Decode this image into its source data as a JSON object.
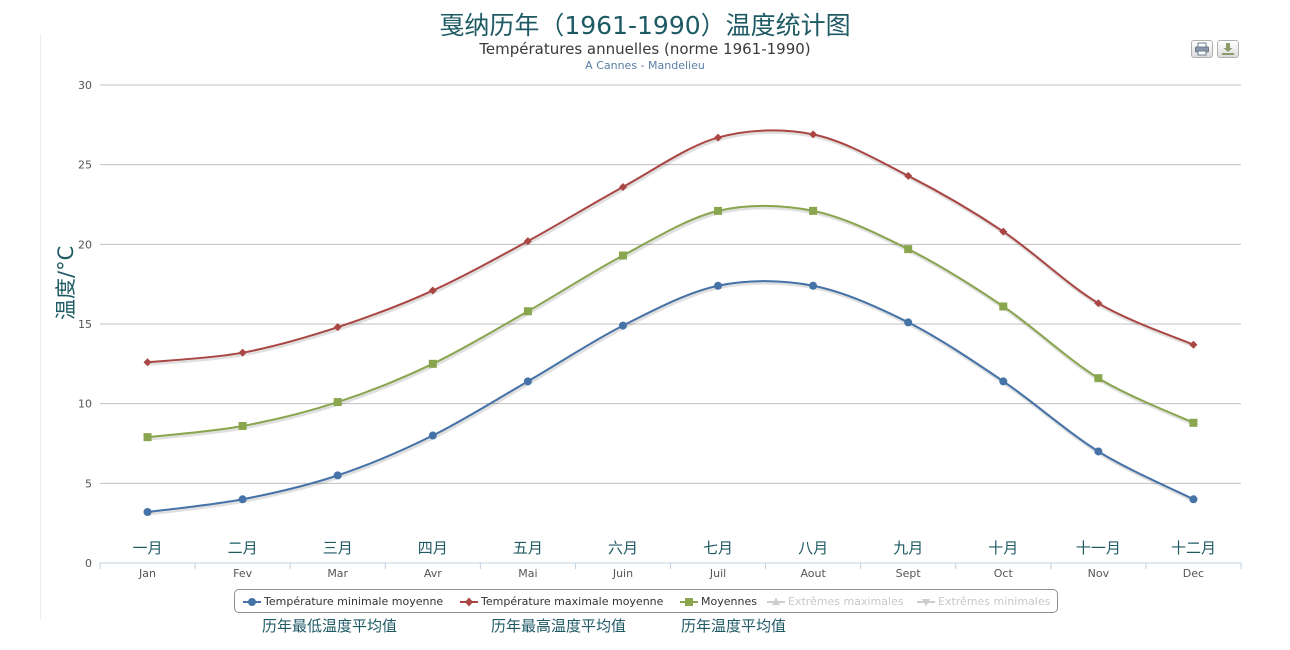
{
  "header": {
    "cn_title": "戛纳历年（1961-1990）温度统计图",
    "fr_title": "Températures annuelles (norme 1961-1990)",
    "subtitle": "A Cannes - Mandelieu"
  },
  "toolbar": {
    "print_icon": "print-icon",
    "download_icon": "download-icon"
  },
  "chart_data": {
    "type": "line",
    "title": "Températures annuelles (norme 1961-1990)",
    "subtitle": "A Cannes - Mandelieu",
    "ylabel": "温度/°C",
    "ylim": [
      0,
      30
    ],
    "yticks": [
      0,
      5,
      10,
      15,
      20,
      25,
      30
    ],
    "grid": true,
    "categories": [
      "Jan",
      "Fev",
      "Mar",
      "Avr",
      "Mai",
      "Juin",
      "Juil",
      "Aout",
      "Sept",
      "Oct",
      "Nov",
      "Dec"
    ],
    "cn_categories": [
      "一月",
      "二月",
      "三月",
      "四月",
      "五月",
      "六月",
      "七月",
      "八月",
      "九月",
      "十月",
      "十一月",
      "十二月"
    ],
    "legend_position": "bottom",
    "series": [
      {
        "name": "Température minimale moyenne",
        "color": "#4572a7",
        "marker": "circle",
        "values": [
          3.2,
          4.0,
          5.5,
          8.0,
          11.4,
          14.9,
          17.4,
          17.4,
          15.1,
          11.4,
          7.0,
          4.0
        ]
      },
      {
        "name": "Température maximale moyenne",
        "color": "#aa4643",
        "marker": "diamond",
        "values": [
          12.6,
          13.2,
          14.8,
          17.1,
          20.2,
          23.6,
          26.7,
          26.9,
          24.3,
          20.8,
          16.3,
          13.7
        ]
      },
      {
        "name": "Moyennes",
        "color": "#89a54e",
        "marker": "square",
        "values": [
          7.9,
          8.6,
          10.1,
          12.5,
          15.8,
          19.3,
          22.1,
          22.1,
          19.7,
          16.1,
          11.6,
          8.8
        ]
      }
    ],
    "hidden_series": [
      {
        "name": "Extrêmes maximales",
        "marker": "triangle"
      },
      {
        "name": "Extrêmes minimales",
        "marker": "triangle-down"
      }
    ],
    "annotations": [
      "历年最低温度平均值",
      "历年最高温度平均值",
      "历年温度平均值"
    ]
  }
}
